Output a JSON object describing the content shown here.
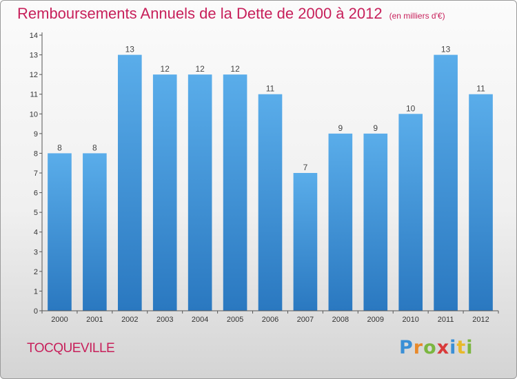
{
  "chart_data": {
    "type": "bar",
    "title": "Remboursements Annuels de la Dette de 2000 à 2012",
    "subtitle": "(en milliers d'€)",
    "xlabel": "",
    "ylabel": "",
    "categories": [
      "2000",
      "2001",
      "2002",
      "2003",
      "2004",
      "2005",
      "2006",
      "2007",
      "2008",
      "2009",
      "2010",
      "2011",
      "2012"
    ],
    "values": [
      8,
      8,
      13,
      12,
      12,
      12,
      11,
      7,
      9,
      9,
      10,
      13,
      11
    ],
    "ylim": [
      0,
      14
    ],
    "yticks": [
      0,
      1,
      2,
      3,
      4,
      5,
      6,
      7,
      8,
      9,
      10,
      11,
      12,
      13,
      14
    ],
    "grid": false,
    "legend": "none"
  },
  "footer": {
    "commune": "TOCQUEVILLE",
    "logo": {
      "p": "P",
      "r": "r",
      "o": "o",
      "x": "x",
      "i1": "i",
      "t": "t",
      "i2": "i"
    }
  },
  "colors": {
    "title": "#c71f5a",
    "bar_top": "#5aadea",
    "bar_bottom": "#2a78c0",
    "axis": "#555555"
  }
}
